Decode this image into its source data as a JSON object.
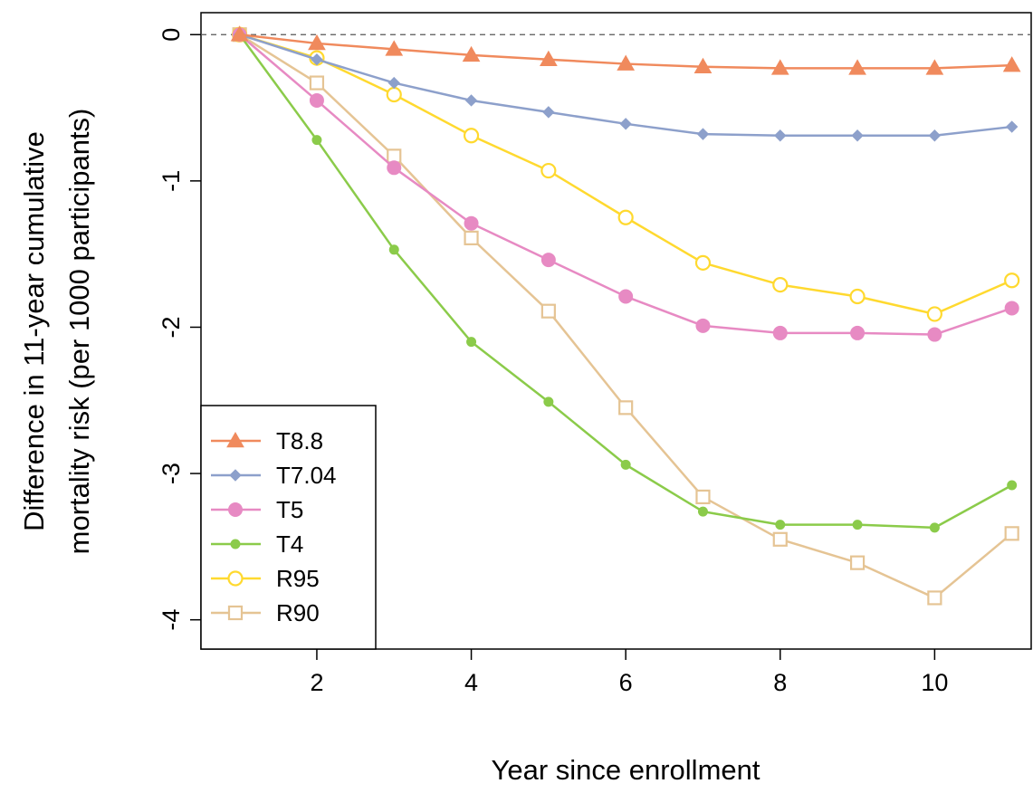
{
  "chart_data": {
    "type": "line",
    "xlabel": "Year since enrollment",
    "ylabel_lines": [
      "Difference in 11-year cumulative",
      "mortality risk (per 1000 participants)"
    ],
    "xlim": [
      0.5,
      11.25
    ],
    "ylim": [
      -4.2,
      0.15
    ],
    "xticks": [
      2,
      4,
      6,
      8,
      10
    ],
    "xtick_labels": [
      "2",
      "4",
      "6",
      "8",
      "10"
    ],
    "yticks": [
      0,
      -1,
      -2,
      -3,
      -4
    ],
    "ytick_labels": [
      "0",
      "-1",
      "-2",
      "-3",
      "-4"
    ],
    "reference_line": {
      "y": 0,
      "style": "dashed"
    },
    "legend_position": "bottom-left",
    "x": [
      1,
      2,
      3,
      4,
      5,
      6,
      7,
      8,
      9,
      10,
      11
    ],
    "series": [
      {
        "name": "T8.8",
        "color": "#F08A5D",
        "marker": "triangle",
        "values": [
          0,
          -0.06,
          -0.1,
          -0.14,
          -0.17,
          -0.2,
          -0.22,
          -0.23,
          -0.23,
          -0.23,
          -0.21
        ]
      },
      {
        "name": "T7.04",
        "color": "#8DA0CB",
        "marker": "diamond",
        "values": [
          0,
          -0.17,
          -0.33,
          -0.45,
          -0.53,
          -0.61,
          -0.68,
          -0.69,
          -0.69,
          -0.69,
          -0.63
        ]
      },
      {
        "name": "T5",
        "color": "#E78AC3",
        "marker": "filled-circle",
        "values": [
          0,
          -0.45,
          -0.91,
          -1.29,
          -1.54,
          -1.79,
          -1.99,
          -2.04,
          -2.04,
          -2.05,
          -1.87
        ]
      },
      {
        "name": "T4",
        "color": "#8BCB4A",
        "marker": "small-dot",
        "values": [
          0,
          -0.72,
          -1.47,
          -2.1,
          -2.51,
          -2.94,
          -3.26,
          -3.35,
          -3.35,
          -3.37,
          -3.08
        ]
      },
      {
        "name": "R95",
        "color": "#FFD92F",
        "marker": "open-circle",
        "values": [
          0,
          -0.16,
          -0.41,
          -0.69,
          -0.93,
          -1.25,
          -1.56,
          -1.71,
          -1.79,
          -1.91,
          -1.68
        ]
      },
      {
        "name": "R90",
        "color": "#E5C494",
        "marker": "open-square",
        "values": [
          0,
          -0.33,
          -0.83,
          -1.39,
          -1.89,
          -2.55,
          -3.16,
          -3.45,
          -3.61,
          -3.85,
          -3.41
        ]
      }
    ]
  }
}
